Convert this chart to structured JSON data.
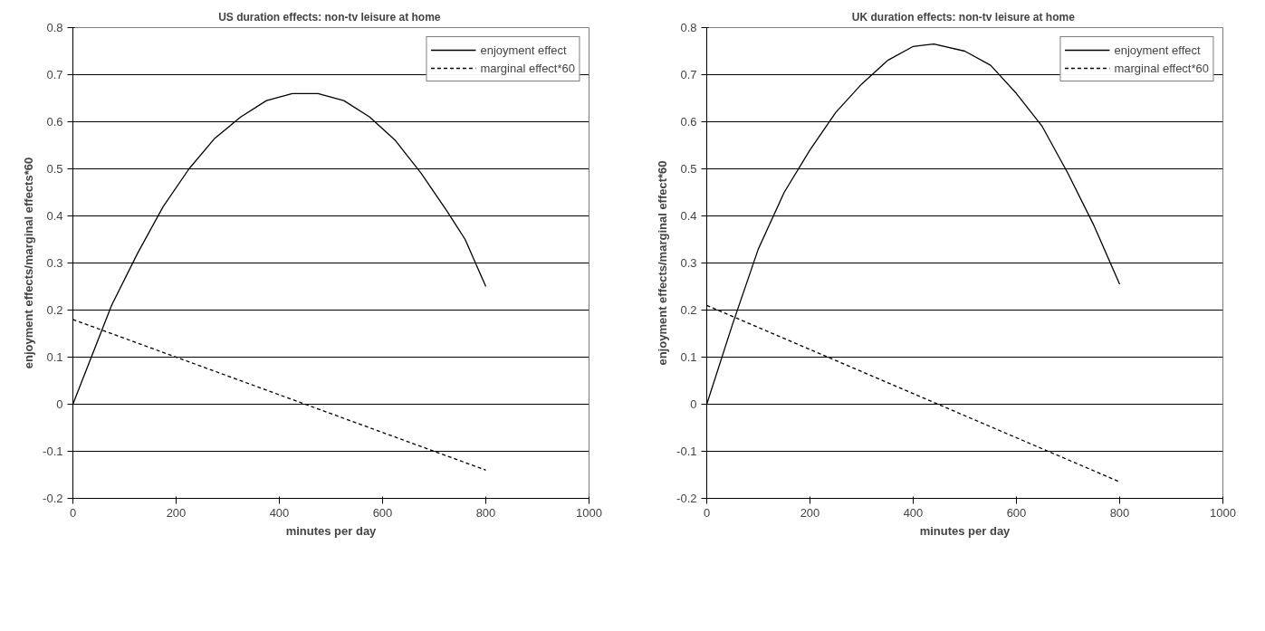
{
  "chart_data": [
    {
      "type": "line",
      "title": "US duration effects: non-tv  leisure at home",
      "xlabel": "minutes per day",
      "ylabel": "enjoyment effects/marginal effects*60",
      "xlim": [
        0,
        1000
      ],
      "xticks": [
        0,
        200,
        400,
        600,
        800,
        1000
      ],
      "ylim": [
        -0.2,
        0.8
      ],
      "yticks": [
        -0.2,
        -0.1,
        0,
        0.1,
        0.2,
        0.3,
        0.4,
        0.5,
        0.6,
        0.7,
        0.8
      ],
      "grid": "y",
      "legend": "top right",
      "series": [
        {
          "name": "enjoyment effect",
          "color": "#000000",
          "line_style": "solid",
          "x": [
            0,
            75,
            125,
            175,
            225,
            275,
            325,
            375,
            425,
            475,
            525,
            575,
            625,
            675,
            725,
            760,
            800
          ],
          "values": [
            0,
            0.21,
            0.32,
            0.42,
            0.5,
            0.565,
            0.61,
            0.645,
            0.66,
            0.66,
            0.645,
            0.61,
            0.56,
            0.49,
            0.41,
            0.35,
            0.25
          ]
        },
        {
          "name": "marginal effect*60",
          "color": "#000000",
          "line_style": "dashed",
          "x": [
            0,
            800
          ],
          "values": [
            0.18,
            -0.14
          ]
        }
      ]
    },
    {
      "type": "line",
      "title": "UK duration effects:  non-tv leisure at home",
      "xlabel": "minutes per day",
      "ylabel": "enjoyment effects/marginal effect*60",
      "xlim": [
        0,
        1000
      ],
      "xticks": [
        0,
        200,
        400,
        600,
        800,
        1000
      ],
      "ylim": [
        -0.2,
        0.8
      ],
      "yticks": [
        -0.2,
        -0.1,
        0,
        0.1,
        0.2,
        0.3,
        0.4,
        0.5,
        0.6,
        0.7,
        0.8
      ],
      "grid": "y",
      "legend": "top right",
      "series": [
        {
          "name": "enjoyment effect",
          "color": "#000000",
          "line_style": "solid",
          "x": [
            0,
            50,
            100,
            150,
            200,
            250,
            300,
            350,
            400,
            440,
            500,
            550,
            600,
            650,
            700,
            750,
            800
          ],
          "values": [
            0,
            0.17,
            0.33,
            0.45,
            0.54,
            0.62,
            0.68,
            0.73,
            0.76,
            0.765,
            0.75,
            0.72,
            0.66,
            0.59,
            0.49,
            0.38,
            0.255
          ]
        },
        {
          "name": "marginal effect*60",
          "color": "#000000",
          "line_style": "dashed",
          "x": [
            0,
            800
          ],
          "values": [
            0.21,
            -0.165
          ]
        }
      ]
    }
  ]
}
